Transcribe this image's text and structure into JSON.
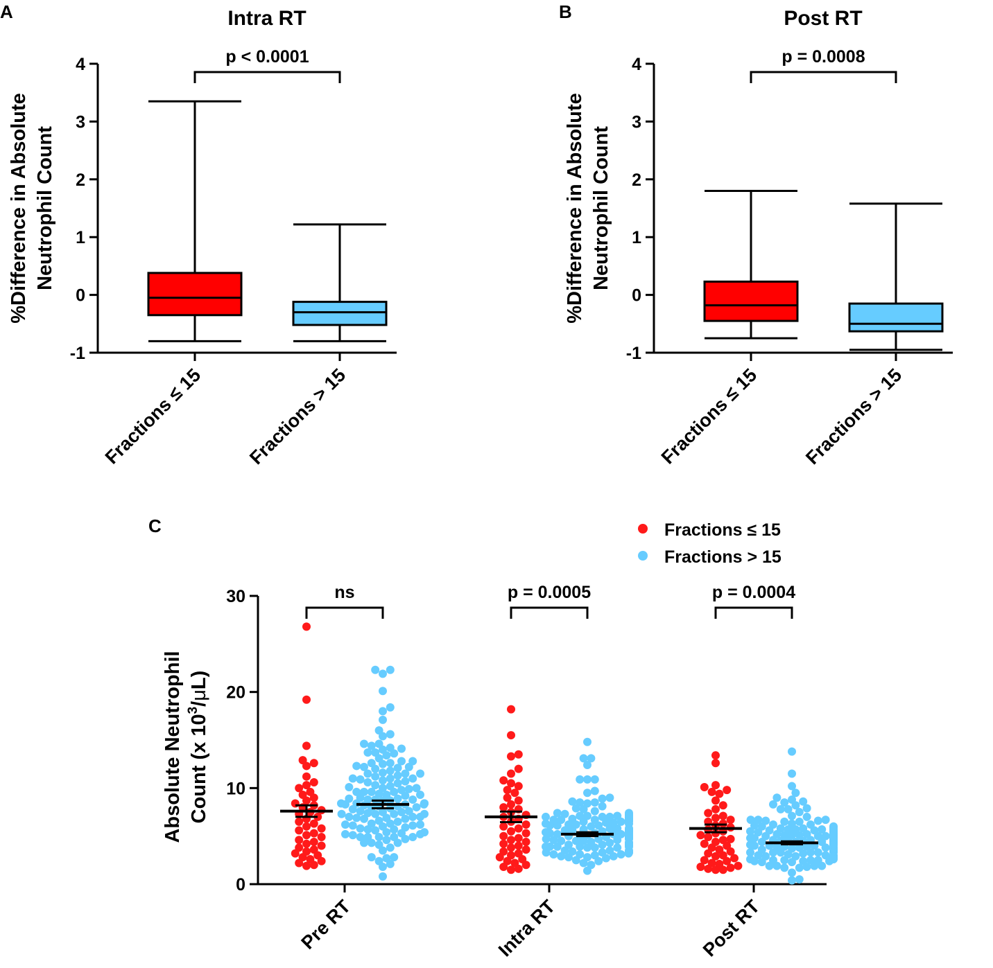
{
  "chart_data": [
    {
      "panel": "A",
      "type": "box",
      "title": "Intra RT",
      "ylabel": [
        "%Difference in Absolute",
        "Neutrophil Count"
      ],
      "ylim": [
        -1,
        4
      ],
      "yticks": [
        -1,
        0,
        1,
        2,
        3,
        4
      ],
      "ytick_labels": [
        "-1",
        "0",
        "1",
        "2",
        "3",
        "4"
      ],
      "categories": [
        "Fractions ≤ 15",
        "Fractions > 15"
      ],
      "boxes": [
        {
          "name": "Fractions ≤ 15",
          "min": -0.8,
          "q1": -0.35,
          "median": -0.05,
          "q3": 0.38,
          "max": 3.35,
          "color": "#ff0000"
        },
        {
          "name": "Fractions > 15",
          "min": -0.8,
          "q1": -0.52,
          "median": -0.3,
          "q3": -0.12,
          "max": 1.22,
          "color": "#66ccff"
        }
      ],
      "comparison": "p < 0.0001"
    },
    {
      "panel": "B",
      "type": "box",
      "title": "Post RT",
      "ylabel": [
        "%Difference in Absolute",
        "Neutrophil Count"
      ],
      "ylim": [
        -1,
        4
      ],
      "yticks": [
        -1,
        0,
        1,
        2,
        3,
        4
      ],
      "ytick_labels": [
        "-1",
        "0",
        "1",
        "2",
        "3",
        "4"
      ],
      "categories": [
        "Fractions ≤ 15",
        "Fractions > 15"
      ],
      "boxes": [
        {
          "name": "Fractions ≤ 15",
          "min": -0.75,
          "q1": -0.45,
          "median": -0.18,
          "q3": 0.23,
          "max": 1.8,
          "color": "#ff0000"
        },
        {
          "name": "Fractions > 15",
          "min": -0.95,
          "q1": -0.63,
          "median": -0.5,
          "q3": -0.15,
          "max": 1.58,
          "color": "#66ccff"
        }
      ],
      "comparison": "p = 0.0008"
    },
    {
      "panel": "C",
      "type": "scatter",
      "ylabel": [
        "Absolute Neutrophil",
        "Count (x 10",
        "3",
        "/",
        "μ",
        "L)"
      ],
      "ylim": [
        0,
        30
      ],
      "yticks": [
        0,
        10,
        20,
        30
      ],
      "ytick_labels": [
        "0",
        "10",
        "20",
        "30"
      ],
      "groups": [
        "Pre RT",
        "Intra RT",
        "Post RT"
      ],
      "legend": [
        {
          "label": "Fractions ≤ 15",
          "color": "#ff1a1a"
        },
        {
          "label": "Fractions > 15",
          "color": "#66ccff"
        }
      ],
      "comparisons": [
        "ns",
        "p = 0.0005",
        "p = 0.0004"
      ],
      "series_summary": [
        {
          "group": "Pre RT",
          "series": "Fractions ≤ 15",
          "mean": 7.6,
          "sem": 0.6,
          "n": 45,
          "min": 1.9,
          "max": 26.8,
          "values": [
            26.8,
            19.2,
            14.4,
            12.9,
            12.6,
            12.3,
            11.2,
            10.6,
            10.3,
            10.0,
            9.6,
            9.3,
            9.0,
            8.7,
            8.4,
            8.2,
            8.0,
            7.7,
            7.5,
            7.3,
            7.0,
            6.8,
            6.5,
            6.3,
            6.0,
            5.8,
            5.6,
            5.3,
            5.1,
            4.9,
            4.6,
            4.4,
            4.2,
            4.0,
            3.8,
            3.6,
            3.4,
            3.2,
            3.0,
            2.8,
            2.6,
            2.4,
            2.2,
            2.0,
            1.9
          ]
        },
        {
          "group": "Pre RT",
          "series": "Fractions > 15",
          "mean": 8.3,
          "sem": 0.4,
          "n": 140,
          "min": 0.8,
          "max": 22.3
        },
        {
          "group": "Intra RT",
          "series": "Fractions ≤ 15",
          "mean": 7.0,
          "sem": 0.55,
          "n": 45,
          "min": 1.5,
          "max": 18.2,
          "values": [
            18.2,
            15.5,
            13.5,
            13.3,
            12.0,
            11.5,
            10.8,
            10.5,
            10.2,
            9.8,
            9.5,
            9.0,
            8.7,
            8.3,
            8.0,
            7.8,
            7.5,
            7.2,
            7.0,
            6.8,
            6.5,
            6.2,
            6.0,
            5.8,
            5.5,
            5.3,
            5.0,
            4.8,
            4.6,
            4.4,
            4.2,
            4.0,
            3.8,
            3.6,
            3.4,
            3.2,
            3.0,
            2.8,
            2.6,
            2.4,
            2.2,
            2.0,
            1.8,
            1.6,
            1.5
          ]
        },
        {
          "group": "Intra RT",
          "series": "Fractions > 15",
          "mean": 5.2,
          "sem": 0.2,
          "n": 150,
          "min": 1.4,
          "max": 14.8
        },
        {
          "group": "Post RT",
          "series": "Fractions ≤ 15",
          "mean": 5.8,
          "sem": 0.4,
          "n": 45,
          "min": 1.5,
          "max": 13.4,
          "values": [
            13.4,
            12.6,
            10.3,
            10.1,
            9.8,
            9.6,
            9.4,
            8.7,
            8.2,
            7.8,
            7.4,
            7.1,
            6.9,
            6.7,
            6.5,
            6.3,
            6.1,
            5.9,
            5.7,
            5.5,
            5.3,
            5.1,
            4.9,
            4.7,
            4.6,
            4.4,
            4.2,
            4.0,
            3.8,
            3.6,
            3.4,
            3.2,
            3.0,
            2.9,
            2.7,
            2.5,
            2.4,
            2.2,
            2.1,
            1.9,
            1.8,
            1.7,
            1.6,
            1.5,
            1.5
          ]
        },
        {
          "group": "Post RT",
          "series": "Fractions > 15",
          "mean": 4.3,
          "sem": 0.15,
          "n": 170,
          "min": 0.4,
          "max": 13.8
        }
      ]
    }
  ]
}
